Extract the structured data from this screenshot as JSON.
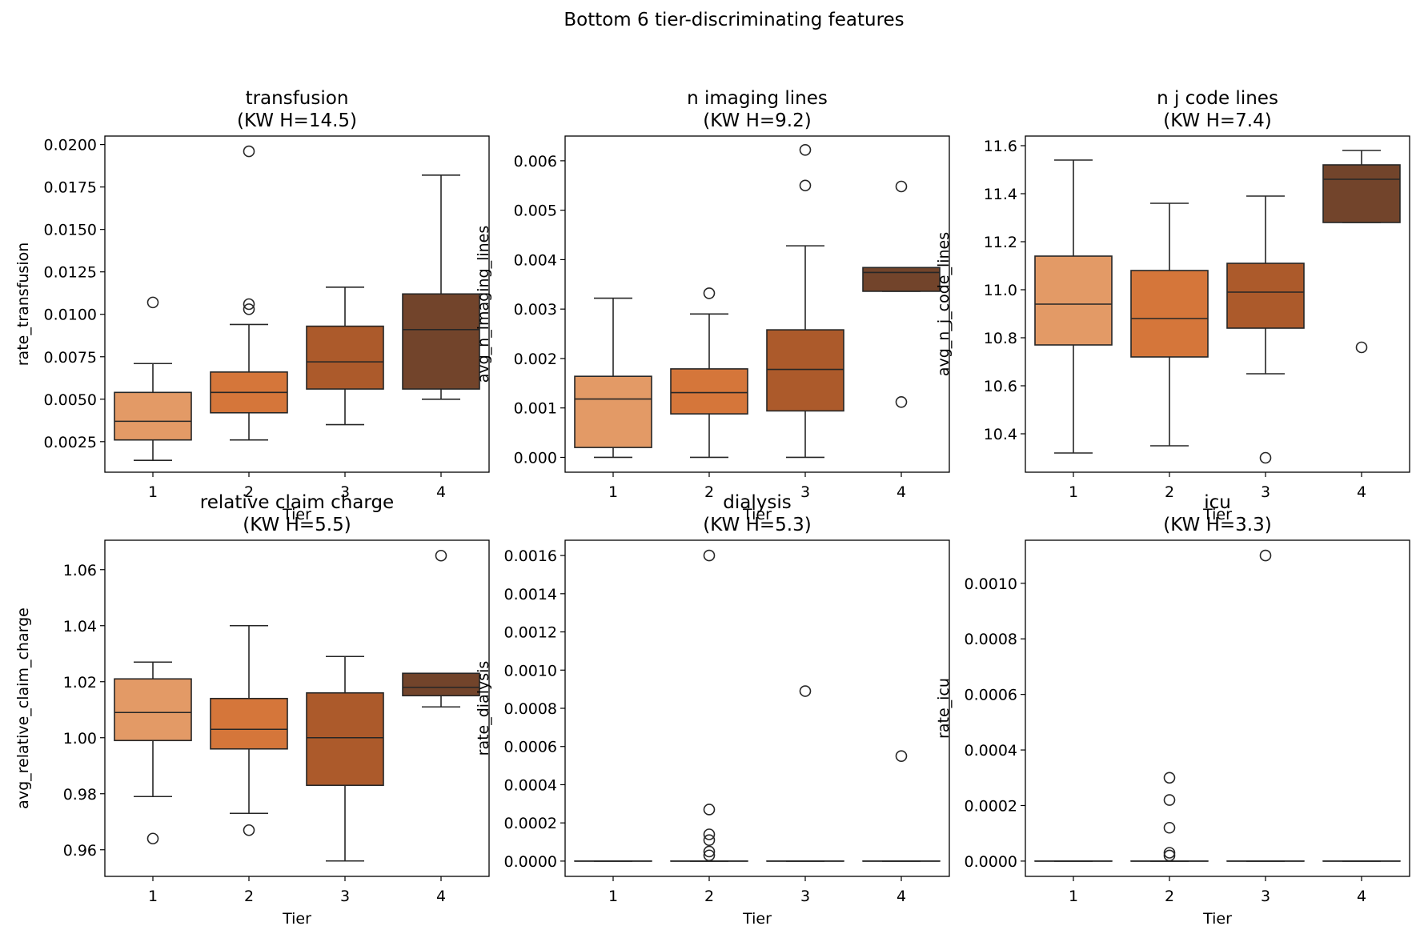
{
  "figure": {
    "suptitle": "Bottom 6 tier-discriminating features"
  },
  "colors": {
    "tier1": "#E39A66",
    "tier2": "#D5763A",
    "tier3": "#AC5A2B",
    "tier4": "#72442B",
    "line": "#262626",
    "frame": "#000000",
    "background": "#ffffff"
  },
  "chart_data": [
    {
      "type": "box",
      "title": "transfusion",
      "subtitle": "(KW H=14.5)",
      "xlabel": "Tier",
      "ylabel": "rate_transfusion",
      "categories": [
        "1",
        "2",
        "3",
        "4"
      ],
      "ylim": [
        0.0007,
        0.0205
      ],
      "yticks": [
        0.0025,
        0.005,
        0.0075,
        0.01,
        0.0125,
        0.015,
        0.0175,
        0.02
      ],
      "ytick_labels": [
        "0.0025",
        "0.0050",
        "0.0075",
        "0.0100",
        "0.0125",
        "0.0150",
        "0.0175",
        "0.0200"
      ],
      "boxes": [
        {
          "tier": "1",
          "whislo": 0.0014,
          "q1": 0.0026,
          "med": 0.0037,
          "q3": 0.0054,
          "whishi": 0.0071,
          "fliers": [
            0.0107
          ]
        },
        {
          "tier": "2",
          "whislo": 0.0026,
          "q1": 0.0042,
          "med": 0.0054,
          "q3": 0.0066,
          "whishi": 0.0094,
          "fliers": [
            0.0103,
            0.0106,
            0.0196
          ]
        },
        {
          "tier": "3",
          "whislo": 0.0035,
          "q1": 0.0056,
          "med": 0.0072,
          "q3": 0.0093,
          "whishi": 0.0116,
          "fliers": []
        },
        {
          "tier": "4",
          "whislo": 0.005,
          "q1": 0.0056,
          "med": 0.0091,
          "q3": 0.0112,
          "whishi": 0.0182,
          "fliers": []
        }
      ]
    },
    {
      "type": "box",
      "title": "n imaging lines",
      "subtitle": "(KW H=9.2)",
      "xlabel": "Tier",
      "ylabel": "avg_n_imaging_lines",
      "categories": [
        "1",
        "2",
        "3",
        "4"
      ],
      "ylim": [
        -0.0003,
        0.0065
      ],
      "yticks": [
        0,
        0.001,
        0.002,
        0.003,
        0.004,
        0.005,
        0.006
      ],
      "ytick_labels": [
        "0.000",
        "0.001",
        "0.002",
        "0.003",
        "0.004",
        "0.005",
        "0.006"
      ],
      "boxes": [
        {
          "tier": "1",
          "whislo": 0.0,
          "q1": 0.0002,
          "med": 0.00118,
          "q3": 0.00164,
          "whishi": 0.00322,
          "fliers": []
        },
        {
          "tier": "2",
          "whislo": 0.0,
          "q1": 0.00088,
          "med": 0.00131,
          "q3": 0.00179,
          "whishi": 0.0029,
          "fliers": [
            0.00332
          ]
        },
        {
          "tier": "3",
          "whislo": 0.0,
          "q1": 0.00094,
          "med": 0.00178,
          "q3": 0.00258,
          "whishi": 0.00428,
          "fliers": [
            0.0055,
            0.00622
          ]
        },
        {
          "tier": "4",
          "whislo": 0.00336,
          "q1": 0.00336,
          "med": 0.00374,
          "q3": 0.00384,
          "whishi": 0.00384,
          "fliers": [
            0.00112,
            0.00548
          ]
        }
      ]
    },
    {
      "type": "box",
      "title": "n j code lines",
      "subtitle": "(KW H=7.4)",
      "xlabel": "Tier",
      "ylabel": "avg_n_j_code_lines",
      "categories": [
        "1",
        "2",
        "3",
        "4"
      ],
      "ylim": [
        10.24,
        11.64
      ],
      "yticks": [
        10.4,
        10.6,
        10.8,
        11.0,
        11.2,
        11.4,
        11.6
      ],
      "ytick_labels": [
        "10.4",
        "10.6",
        "10.8",
        "11.0",
        "11.2",
        "11.4",
        "11.6"
      ],
      "boxes": [
        {
          "tier": "1",
          "whislo": 10.32,
          "q1": 10.77,
          "med": 10.94,
          "q3": 11.14,
          "whishi": 11.54,
          "fliers": []
        },
        {
          "tier": "2",
          "whislo": 10.35,
          "q1": 10.72,
          "med": 10.88,
          "q3": 11.08,
          "whishi": 11.36,
          "fliers": []
        },
        {
          "tier": "3",
          "whislo": 10.65,
          "q1": 10.84,
          "med": 10.99,
          "q3": 11.11,
          "whishi": 11.39,
          "fliers": [
            10.3
          ]
        },
        {
          "tier": "4",
          "whislo": 11.28,
          "q1": 11.28,
          "med": 11.46,
          "q3": 11.52,
          "whishi": 11.58,
          "fliers": [
            10.76
          ]
        }
      ]
    },
    {
      "type": "box",
      "title": "relative claim charge",
      "subtitle": "(KW H=5.5)",
      "xlabel": "Tier",
      "ylabel": "avg_relative_claim_charge",
      "categories": [
        "1",
        "2",
        "3",
        "4"
      ],
      "ylim": [
        0.9505,
        1.0705
      ],
      "yticks": [
        0.96,
        0.98,
        1.0,
        1.02,
        1.04,
        1.06
      ],
      "ytick_labels": [
        "0.96",
        "0.98",
        "1.00",
        "1.02",
        "1.04",
        "1.06"
      ],
      "boxes": [
        {
          "tier": "1",
          "whislo": 0.979,
          "q1": 0.999,
          "med": 1.009,
          "q3": 1.021,
          "whishi": 1.027,
          "fliers": [
            0.964
          ]
        },
        {
          "tier": "2",
          "whislo": 0.973,
          "q1": 0.996,
          "med": 1.003,
          "q3": 1.014,
          "whishi": 1.04,
          "fliers": [
            0.967
          ]
        },
        {
          "tier": "3",
          "whislo": 0.956,
          "q1": 0.983,
          "med": 1.0,
          "q3": 1.016,
          "whishi": 1.029,
          "fliers": []
        },
        {
          "tier": "4",
          "whislo": 1.011,
          "q1": 1.015,
          "med": 1.018,
          "q3": 1.023,
          "whishi": 1.023,
          "fliers": [
            1.065
          ]
        }
      ]
    },
    {
      "type": "box",
      "title": "dialysis",
      "subtitle": "(KW H=5.3)",
      "xlabel": "Tier",
      "ylabel": "rate_dialysis",
      "categories": [
        "1",
        "2",
        "3",
        "4"
      ],
      "ylim": [
        -8e-05,
        0.00168
      ],
      "yticks": [
        0,
        0.0002,
        0.0004,
        0.0006,
        0.0008,
        0.001,
        0.0012,
        0.0014,
        0.0016
      ],
      "ytick_labels": [
        "0.0000",
        "0.0002",
        "0.0004",
        "0.0006",
        "0.0008",
        "0.0010",
        "0.0012",
        "0.0014",
        "0.0016"
      ],
      "boxes": [
        {
          "tier": "1",
          "whislo": 0,
          "q1": 0,
          "med": 0,
          "q3": 0,
          "whishi": 0,
          "fliers": []
        },
        {
          "tier": "2",
          "whislo": 0,
          "q1": 0,
          "med": 0,
          "q3": 0,
          "whishi": 0,
          "fliers": [
            3e-05,
            5e-05,
            0.00011,
            0.00014,
            0.00027,
            0.0016
          ]
        },
        {
          "tier": "3",
          "whislo": 0,
          "q1": 0,
          "med": 0,
          "q3": 0,
          "whishi": 0,
          "fliers": [
            0.00089
          ]
        },
        {
          "tier": "4",
          "whislo": 0,
          "q1": 0,
          "med": 0,
          "q3": 0,
          "whishi": 0,
          "fliers": [
            0.00055
          ]
        }
      ]
    },
    {
      "type": "box",
      "title": "icu",
      "subtitle": "(KW H=3.3)",
      "xlabel": "Tier",
      "ylabel": "rate_icu",
      "categories": [
        "1",
        "2",
        "3",
        "4"
      ],
      "ylim": [
        -5.5e-05,
        0.001155
      ],
      "yticks": [
        0,
        0.0002,
        0.0004,
        0.0006,
        0.0008,
        0.001
      ],
      "ytick_labels": [
        "0.0000",
        "0.0002",
        "0.0004",
        "0.0006",
        "0.0008",
        "0.0010"
      ],
      "boxes": [
        {
          "tier": "1",
          "whislo": 0,
          "q1": 0,
          "med": 0,
          "q3": 0,
          "whishi": 0,
          "fliers": []
        },
        {
          "tier": "2",
          "whislo": 0,
          "q1": 0,
          "med": 0,
          "q3": 0,
          "whishi": 0,
          "fliers": [
            2e-05,
            3e-05,
            0.00012,
            0.00022,
            0.0003
          ]
        },
        {
          "tier": "3",
          "whislo": 0,
          "q1": 0,
          "med": 0,
          "q3": 0,
          "whishi": 0,
          "fliers": [
            0.0011
          ]
        },
        {
          "tier": "4",
          "whislo": 0,
          "q1": 0,
          "med": 0,
          "q3": 0,
          "whishi": 0,
          "fliers": []
        }
      ]
    }
  ]
}
